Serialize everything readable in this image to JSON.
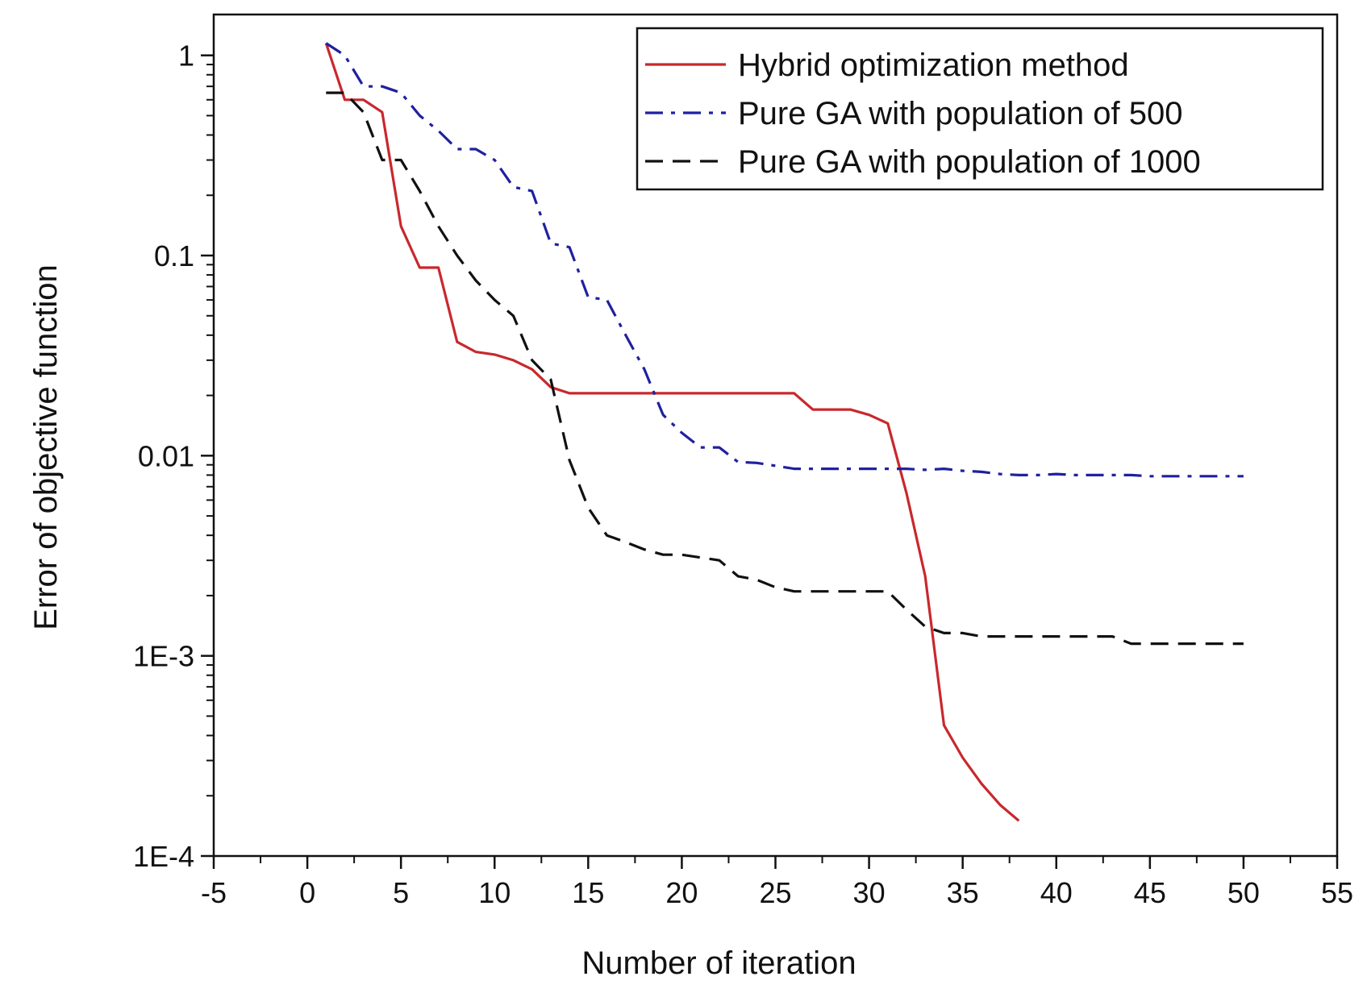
{
  "chart_data": {
    "type": "line",
    "title": "",
    "xlabel": "Number of iteration",
    "ylabel": "Error of objective function",
    "xlim": [
      -5,
      55
    ],
    "ylim": [
      0.0001,
      1.6
    ],
    "yscale": "log",
    "grid": false,
    "legend_position": "top-right",
    "x_ticks": [
      {
        "value": -5,
        "label": "-5"
      },
      {
        "value": 0,
        "label": "0"
      },
      {
        "value": 5,
        "label": "5"
      },
      {
        "value": 10,
        "label": "10"
      },
      {
        "value": 15,
        "label": "15"
      },
      {
        "value": 20,
        "label": "20"
      },
      {
        "value": 25,
        "label": "25"
      },
      {
        "value": 30,
        "label": "30"
      },
      {
        "value": 35,
        "label": "35"
      },
      {
        "value": 40,
        "label": "40"
      },
      {
        "value": 45,
        "label": "45"
      },
      {
        "value": 50,
        "label": "50"
      },
      {
        "value": 55,
        "label": "55"
      }
    ],
    "y_ticks": [
      {
        "value": 1,
        "label": "1"
      },
      {
        "value": 0.1,
        "label": "0.1"
      },
      {
        "value": 0.01,
        "label": "0.01"
      },
      {
        "value": 0.001,
        "label": "1E-3"
      },
      {
        "value": 0.0001,
        "label": "1E-4"
      }
    ],
    "series": [
      {
        "name": "Hybrid optimization method",
        "color": "#c8282d",
        "dash": "solid",
        "x": [
          1,
          2,
          3,
          4,
          5,
          6,
          7,
          8,
          9,
          10,
          11,
          12,
          13,
          14,
          15,
          16,
          17,
          18,
          19,
          20,
          21,
          22,
          23,
          24,
          25,
          26,
          27,
          28,
          29,
          30,
          31,
          32,
          33,
          34,
          35,
          36,
          37,
          38
        ],
        "y": [
          1.15,
          0.6,
          0.6,
          0.52,
          0.14,
          0.087,
          0.087,
          0.037,
          0.033,
          0.032,
          0.03,
          0.027,
          0.022,
          0.0205,
          0.0205,
          0.0205,
          0.0205,
          0.0205,
          0.0205,
          0.0205,
          0.0205,
          0.0205,
          0.0205,
          0.0205,
          0.0205,
          0.0205,
          0.017,
          0.017,
          0.017,
          0.016,
          0.0145,
          0.0065,
          0.0025,
          0.00045,
          0.00031,
          0.00023,
          0.00018,
          0.00015
        ]
      },
      {
        "name": "Pure GA with population of 500",
        "color": "#2020a0",
        "dash": "dashdot",
        "x": [
          1,
          2,
          3,
          4,
          5,
          6,
          7,
          8,
          9,
          10,
          11,
          12,
          13,
          14,
          15,
          16,
          17,
          18,
          19,
          20,
          21,
          22,
          23,
          24,
          25,
          26,
          27,
          28,
          29,
          30,
          31,
          32,
          33,
          34,
          35,
          36,
          37,
          38,
          39,
          40,
          41,
          42,
          43,
          44,
          45,
          46,
          47,
          48,
          49,
          50
        ],
        "y": [
          1.15,
          1.0,
          0.7,
          0.7,
          0.65,
          0.5,
          0.42,
          0.34,
          0.34,
          0.3,
          0.22,
          0.21,
          0.115,
          0.11,
          0.062,
          0.06,
          0.04,
          0.027,
          0.016,
          0.013,
          0.011,
          0.011,
          0.0093,
          0.0092,
          0.0089,
          0.0086,
          0.0086,
          0.0086,
          0.0086,
          0.0086,
          0.0086,
          0.0086,
          0.0085,
          0.0086,
          0.0084,
          0.0083,
          0.0081,
          0.008,
          0.008,
          0.0081,
          0.008,
          0.008,
          0.008,
          0.008,
          0.0079,
          0.0079,
          0.0079,
          0.0079,
          0.0079,
          0.0079
        ]
      },
      {
        "name": "Pure GA with population of 1000",
        "color": "#111111",
        "dash": "dashed",
        "x": [
          1,
          2,
          3,
          4,
          5,
          6,
          7,
          8,
          9,
          10,
          11,
          12,
          13,
          14,
          15,
          16,
          17,
          18,
          19,
          20,
          21,
          22,
          23,
          24,
          25,
          26,
          27,
          28,
          29,
          30,
          31,
          32,
          33,
          34,
          35,
          36,
          37,
          38,
          39,
          40,
          41,
          42,
          43,
          44,
          45,
          46,
          47,
          48,
          49,
          50
        ],
        "y": [
          0.65,
          0.65,
          0.52,
          0.3,
          0.3,
          0.21,
          0.14,
          0.1,
          0.075,
          0.06,
          0.05,
          0.03,
          0.024,
          0.0095,
          0.0055,
          0.004,
          0.0037,
          0.0034,
          0.0032,
          0.0032,
          0.0031,
          0.003,
          0.0025,
          0.0024,
          0.0022,
          0.0021,
          0.0021,
          0.0021,
          0.0021,
          0.0021,
          0.0021,
          0.0017,
          0.0014,
          0.0013,
          0.0013,
          0.00125,
          0.00125,
          0.00125,
          0.00125,
          0.00125,
          0.00125,
          0.00125,
          0.00125,
          0.00115,
          0.00115,
          0.00115,
          0.00115,
          0.00115,
          0.00115,
          0.00115
        ]
      }
    ]
  }
}
